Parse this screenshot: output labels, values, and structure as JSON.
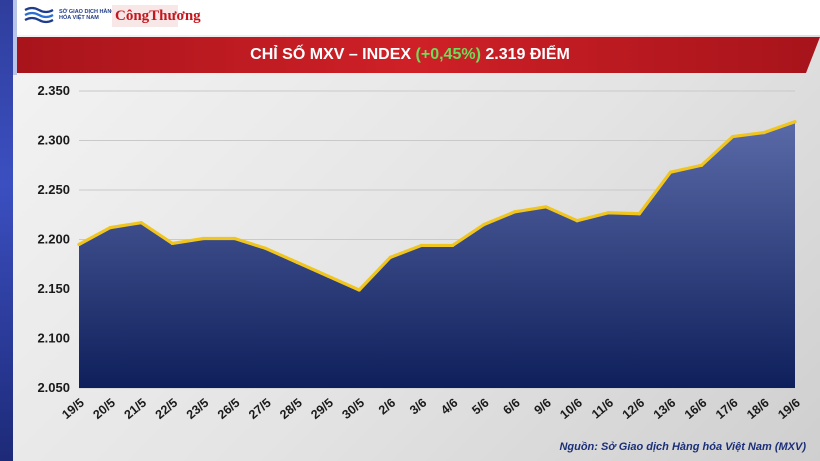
{
  "header": {
    "logo_mxv_text": "SỞ GIAO DỊCH HÀNG HÓA VIỆT NAM",
    "logo_ct_text": "CôngThương"
  },
  "title": {
    "prefix": "CHỈ SỐ MXV – INDEX ",
    "change": "(+0,45%)",
    "suffix": " 2.319 ĐIỂM"
  },
  "source": "Nguồn: Sở Giao dịch Hàng hóa Việt Nam (MXV)",
  "colors": {
    "banner": "#c41e25",
    "positive": "#6fdc5a",
    "line": "#f0c51e",
    "area_top": "#5a6aa8",
    "area_bottom": "#0e1f5c"
  },
  "chart_data": {
    "type": "area",
    "categories": [
      "19/5",
      "20/5",
      "21/5",
      "22/5",
      "23/5",
      "26/5",
      "27/5",
      "28/5",
      "29/5",
      "30/5",
      "2/6",
      "3/6",
      "4/6",
      "5/6",
      "6/6",
      "9/6",
      "10/6",
      "11/6",
      "12/6",
      "13/6",
      "16/6",
      "17/6",
      "18/6",
      "19/6"
    ],
    "values": [
      2195,
      2212,
      2217,
      2196,
      2201,
      2201,
      2191,
      2177,
      2163,
      2149,
      2182,
      2194,
      2194,
      2215,
      2228,
      2233,
      2219,
      2227,
      2226,
      2268,
      2275,
      2304,
      2308,
      2319
    ],
    "ylim": [
      2050,
      2350
    ],
    "yticks": [
      2050,
      2100,
      2150,
      2200,
      2250,
      2300,
      2350
    ],
    "ytick_labels": [
      "2.050",
      "2.100",
      "2.150",
      "2.200",
      "2.250",
      "2.300",
      "2.350"
    ],
    "grid": true
  }
}
